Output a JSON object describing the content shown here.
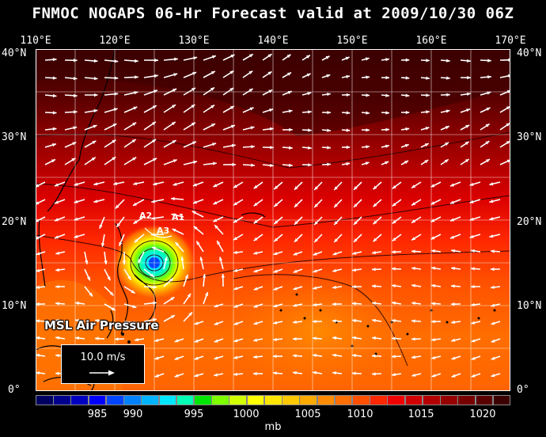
{
  "title": "FNMOC NOGAPS 06-Hr Forecast valid at 2009/10/30 06Z",
  "longitude_labels": [
    "110°E",
    "120°E",
    "130°E",
    "140°E",
    "150°E",
    "160°E",
    "170°E"
  ],
  "latitude_labels": [
    "40°N",
    "30°N",
    "20°N",
    "10°N",
    "0°"
  ],
  "layer_label": "MSL Air Pressure",
  "wind_reference": "10.0 m/s",
  "storm_track_labels": [
    "A2",
    "A1",
    "A3"
  ],
  "colorbar": {
    "labels": [
      "985",
      "990",
      "995",
      "1000",
      "1005",
      "1010",
      "1015",
      "1020"
    ],
    "unit": "mb",
    "colors": [
      "#000060",
      "#00008c",
      "#0000c0",
      "#0000ff",
      "#0046ff",
      "#0082ff",
      "#00b4ff",
      "#00e6ff",
      "#00ffb4",
      "#00e600",
      "#7dff00",
      "#d2ff00",
      "#ffff00",
      "#ffe600",
      "#ffc800",
      "#ffaa00",
      "#ff8c00",
      "#ff6e00",
      "#ff5000",
      "#ff2800",
      "#f00000",
      "#d20000",
      "#b40000",
      "#960000",
      "#780000",
      "#5a0000",
      "#3c0000"
    ]
  },
  "colors": {
    "background": "#000000",
    "wind_arrows": "#ffffff",
    "grid": "#ffffff"
  }
}
